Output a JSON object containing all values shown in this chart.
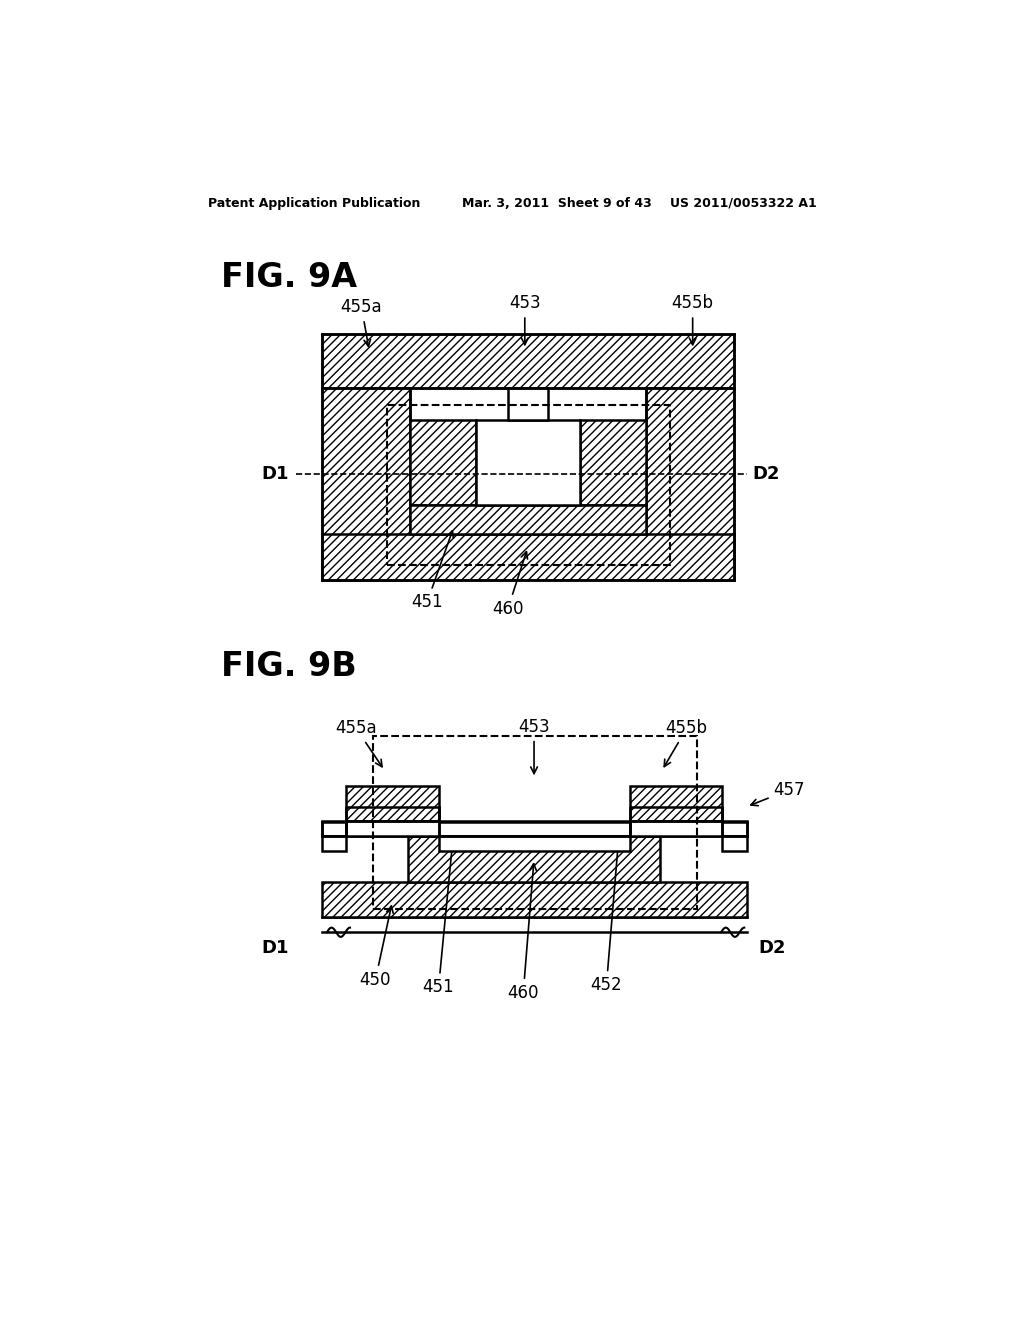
{
  "bg_color": "#ffffff",
  "header_left": "Patent Application Publication",
  "header_mid": "Mar. 3, 2011  Sheet 9 of 43",
  "header_right": "US 2011/0053322 A1",
  "fig9a_label": "FIG. 9A",
  "fig9b_label": "FIG. 9B",
  "hatch_pattern": "////",
  "line_color": "#000000"
}
